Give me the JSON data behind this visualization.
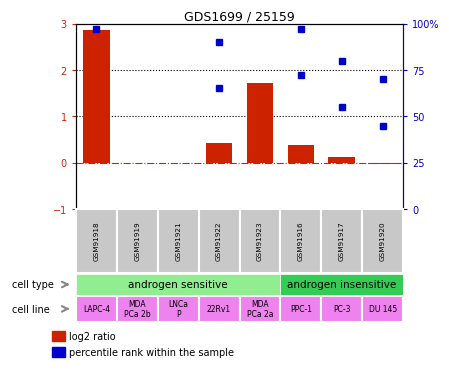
{
  "title": "GDS1699 / 25159",
  "samples": [
    "GSM91918",
    "GSM91919",
    "GSM91921",
    "GSM91922",
    "GSM91923",
    "GSM91916",
    "GSM91917",
    "GSM91920"
  ],
  "log2_ratio": [
    2.85,
    0.0,
    0.0,
    0.42,
    1.72,
    0.38,
    0.12,
    -0.02
  ],
  "pct_positions": [
    0,
    3,
    5,
    6,
    7
  ],
  "pct_values": [
    97,
    65,
    72,
    55,
    45
  ],
  "cell_type_groups": [
    {
      "label": "androgen sensitive",
      "start": 0,
      "end": 5,
      "color": "#90EE90"
    },
    {
      "label": "androgen insensitive",
      "start": 5,
      "end": 8,
      "color": "#33CC55"
    }
  ],
  "cell_lines": [
    "LAPC-4",
    "MDA\nPCa 2b",
    "LNCa\nP",
    "22Rv1",
    "MDA\nPCa 2a",
    "PPC-1",
    "PC-3",
    "DU 145"
  ],
  "cell_line_color": "#EE82EE",
  "sample_label_color": "#C8C8C8",
  "bar_color": "#CC2200",
  "dot_color": "#0000CC",
  "ytick_color_left": "#CC2200",
  "ylim_left": [
    -1,
    3
  ],
  "ylim_right": [
    0,
    100
  ],
  "yticks_left": [
    -1,
    0,
    1,
    2,
    3
  ],
  "ytick_labels_right": [
    "0",
    "25",
    "50",
    "75",
    "100%"
  ],
  "legend_items": [
    {
      "color": "#CC2200",
      "label": "log2 ratio"
    },
    {
      "color": "#0000CC",
      "label": "percentile rank within the sample"
    }
  ]
}
